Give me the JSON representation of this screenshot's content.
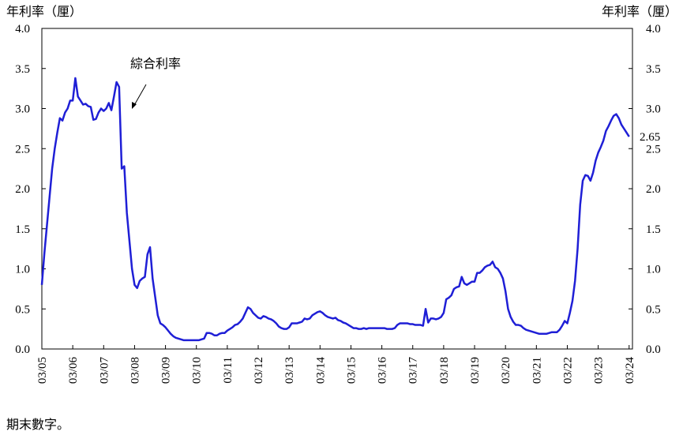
{
  "chart_data": {
    "type": "line",
    "y_label": "年利率（厘）",
    "y2_label": "年利率（厘）",
    "footnote": "期末數字。",
    "end_label": "2.65",
    "categories": [
      "03/05",
      null,
      null,
      null,
      null,
      null,
      null,
      null,
      null,
      null,
      null,
      null,
      "03/06",
      null,
      null,
      null,
      null,
      null,
      null,
      null,
      null,
      null,
      null,
      null,
      "03/07",
      null,
      null,
      null,
      null,
      null,
      null,
      null,
      null,
      null,
      null,
      null,
      "03/08",
      null,
      null,
      null,
      null,
      null,
      null,
      null,
      null,
      null,
      null,
      null,
      "03/09",
      null,
      null,
      null,
      null,
      null,
      null,
      null,
      null,
      null,
      null,
      null,
      "03/10",
      null,
      null,
      null,
      null,
      null,
      null,
      null,
      null,
      null,
      null,
      null,
      "03/11",
      null,
      null,
      null,
      null,
      null,
      null,
      null,
      null,
      null,
      null,
      null,
      "03/12",
      null,
      null,
      null,
      null,
      null,
      null,
      null,
      null,
      null,
      null,
      null,
      "03/13",
      null,
      null,
      null,
      null,
      null,
      null,
      null,
      null,
      null,
      null,
      null,
      "03/14",
      null,
      null,
      null,
      null,
      null,
      null,
      null,
      null,
      null,
      null,
      null,
      "03/15",
      null,
      null,
      null,
      null,
      null,
      null,
      null,
      null,
      null,
      null,
      null,
      "03/16",
      null,
      null,
      null,
      null,
      null,
      null,
      null,
      null,
      null,
      null,
      null,
      "03/17",
      null,
      null,
      null,
      null,
      null,
      null,
      null,
      null,
      null,
      null,
      null,
      "03/18",
      null,
      null,
      null,
      null,
      null,
      null,
      null,
      null,
      null,
      null,
      null,
      "03/19",
      null,
      null,
      null,
      null,
      null,
      null,
      null,
      null,
      null,
      null,
      null,
      "03/20",
      null,
      null,
      null,
      null,
      null,
      null,
      null,
      null,
      null,
      null,
      null,
      "03/21",
      null,
      null,
      null,
      null,
      null,
      null,
      null,
      null,
      null,
      null,
      null,
      "03/22",
      null,
      null,
      null,
      null,
      null,
      null,
      null,
      null,
      null,
      null,
      null,
      "03/23",
      null,
      null,
      null,
      null,
      null,
      null,
      null,
      null,
      null,
      null,
      null,
      "03/24"
    ],
    "series": [
      {
        "name": "綜合利率",
        "color": "#1f1fd6",
        "values": [
          0.8,
          1.2,
          1.55,
          1.9,
          2.25,
          2.5,
          2.7,
          2.88,
          2.85,
          2.95,
          3.0,
          3.1,
          3.1,
          3.38,
          3.15,
          3.1,
          3.05,
          3.06,
          3.03,
          3.02,
          2.86,
          2.87,
          2.95,
          3.0,
          2.97,
          3.0,
          3.07,
          2.98,
          3.15,
          3.33,
          3.27,
          2.25,
          2.28,
          1.7,
          1.35,
          1.0,
          0.8,
          0.76,
          0.85,
          0.88,
          0.9,
          1.18,
          1.27,
          0.88,
          0.65,
          0.42,
          0.32,
          0.3,
          0.27,
          0.23,
          0.19,
          0.16,
          0.14,
          0.13,
          0.12,
          0.11,
          0.11,
          0.11,
          0.11,
          0.11,
          0.11,
          0.11,
          0.12,
          0.13,
          0.2,
          0.2,
          0.19,
          0.17,
          0.17,
          0.19,
          0.2,
          0.2,
          0.23,
          0.25,
          0.27,
          0.3,
          0.31,
          0.34,
          0.38,
          0.45,
          0.52,
          0.5,
          0.45,
          0.42,
          0.39,
          0.38,
          0.41,
          0.4,
          0.38,
          0.37,
          0.35,
          0.32,
          0.28,
          0.26,
          0.25,
          0.25,
          0.27,
          0.32,
          0.32,
          0.32,
          0.33,
          0.34,
          0.38,
          0.37,
          0.38,
          0.42,
          0.44,
          0.46,
          0.47,
          0.45,
          0.42,
          0.4,
          0.39,
          0.38,
          0.39,
          0.36,
          0.35,
          0.33,
          0.32,
          0.3,
          0.28,
          0.26,
          0.26,
          0.25,
          0.25,
          0.26,
          0.25,
          0.26,
          0.26,
          0.26,
          0.26,
          0.26,
          0.26,
          0.26,
          0.25,
          0.25,
          0.25,
          0.26,
          0.3,
          0.32,
          0.32,
          0.32,
          0.32,
          0.31,
          0.31,
          0.3,
          0.3,
          0.3,
          0.29,
          0.5,
          0.33,
          0.38,
          0.38,
          0.37,
          0.38,
          0.4,
          0.45,
          0.62,
          0.64,
          0.67,
          0.75,
          0.77,
          0.78,
          0.9,
          0.82,
          0.8,
          0.82,
          0.84,
          0.84,
          0.95,
          0.95,
          0.98,
          1.02,
          1.04,
          1.05,
          1.09,
          1.02,
          1.0,
          0.95,
          0.88,
          0.72,
          0.5,
          0.4,
          0.34,
          0.3,
          0.3,
          0.29,
          0.26,
          0.24,
          0.23,
          0.22,
          0.21,
          0.2,
          0.19,
          0.19,
          0.19,
          0.19,
          0.2,
          0.21,
          0.21,
          0.21,
          0.24,
          0.29,
          0.35,
          0.32,
          0.45,
          0.6,
          0.85,
          1.25,
          1.8,
          2.1,
          2.17,
          2.16,
          2.1,
          2.2,
          2.35,
          2.45,
          2.52,
          2.6,
          2.72,
          2.78,
          2.85,
          2.91,
          2.93,
          2.88,
          2.8,
          2.75,
          2.7,
          2.65
        ]
      }
    ],
    "ylim": [
      0,
      4
    ],
    "yticks": [
      {
        "value": 0,
        "label": "0.0"
      },
      {
        "value": 0.5,
        "label": "0.5"
      },
      {
        "value": 1,
        "label": "1.0"
      },
      {
        "value": 1.5,
        "label": "1.5"
      },
      {
        "value": 2,
        "label": "2.0"
      },
      {
        "value": 2.5,
        "label": "2.5"
      },
      {
        "value": 3,
        "label": "3.0"
      },
      {
        "value": 3.5,
        "label": "3.5"
      },
      {
        "value": 4,
        "label": "4.0"
      }
    ],
    "y2lim": [
      0,
      4
    ],
    "y2ticks": [
      {
        "value": 0,
        "label": "0.0"
      },
      {
        "value": 0.5,
        "label": "0.5"
      },
      {
        "value": 1,
        "label": "1.0"
      },
      {
        "value": 1.5,
        "label": "1.5"
      },
      {
        "value": 2,
        "label": "2.0"
      },
      {
        "value": 2.5,
        "label": "2.5"
      },
      {
        "value": 3,
        "label": "3.0"
      },
      {
        "value": 3.5,
        "label": "3.5"
      },
      {
        "value": 4,
        "label": "4.0"
      }
    ],
    "grid": false
  }
}
